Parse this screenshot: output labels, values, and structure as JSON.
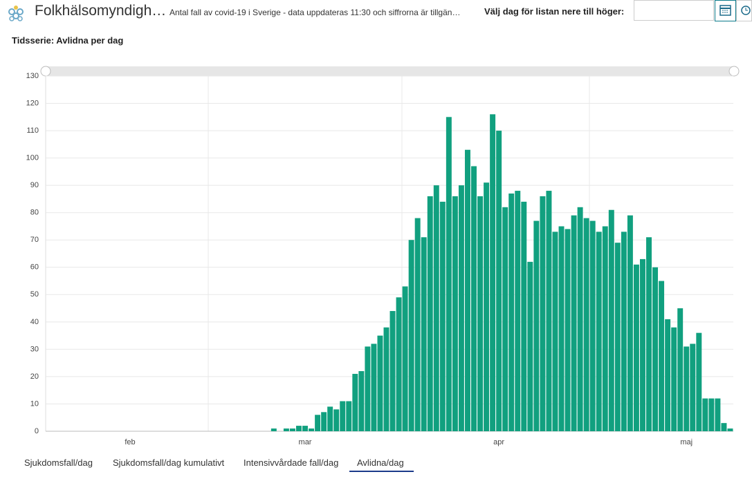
{
  "header": {
    "title": "Folkhälsomyndigh…",
    "subtitle": "Antal fall av covid-19 i Sverige - data uppdateras 11:30 och siffrorna är tillgän…",
    "date_label": "Välj dag för listan nere till höger:"
  },
  "chart_data": {
    "type": "bar",
    "title": "Tidsserie: Avlidna per dag",
    "categories": [
      null,
      null,
      null,
      null,
      null,
      null,
      null,
      null,
      null,
      null,
      null,
      null,
      null,
      "feb",
      null,
      null,
      null,
      null,
      null,
      null,
      null,
      null,
      null,
      null,
      null,
      null,
      null,
      null,
      null,
      null,
      null,
      null,
      null,
      null,
      null,
      null,
      null,
      null,
      null,
      null,
      null,
      "mar",
      null,
      null,
      null,
      null,
      null,
      null,
      null,
      null,
      null,
      null,
      null,
      null,
      null,
      null,
      null,
      null,
      null,
      null,
      null,
      null,
      null,
      null,
      null,
      null,
      null,
      null,
      null,
      null,
      null,
      null,
      "apr",
      null,
      null,
      null,
      null,
      null,
      null,
      null,
      null,
      null,
      null,
      null,
      null,
      null,
      null,
      null,
      null,
      null,
      null,
      null,
      null,
      null,
      null,
      null,
      null,
      null,
      null,
      null,
      null,
      null,
      "maj",
      null,
      null,
      null,
      null,
      null,
      null,
      null
    ],
    "values": [
      0,
      0,
      0,
      0,
      0,
      0,
      0,
      0,
      0,
      0,
      0,
      0,
      0,
      0,
      0,
      0,
      0,
      0,
      0,
      0,
      0,
      0,
      0,
      0,
      0,
      0,
      0,
      0,
      0,
      0,
      0,
      0,
      0,
      0,
      0,
      0,
      1,
      0,
      1,
      1,
      2,
      2,
      1,
      6,
      7,
      9,
      8,
      11,
      11,
      21,
      22,
      31,
      32,
      35,
      38,
      44,
      49,
      53,
      70,
      78,
      71,
      86,
      90,
      84,
      115,
      86,
      90,
      103,
      97,
      86,
      91,
      116,
      110,
      82,
      87,
      88,
      84,
      62,
      77,
      86,
      88,
      73,
      75,
      74,
      79,
      82,
      78,
      77,
      73,
      75,
      81,
      69,
      73,
      79,
      61,
      63,
      71,
      60,
      55,
      41,
      38,
      45,
      31,
      32,
      36,
      12,
      12,
      12,
      3,
      1
    ],
    "color": "#11a07f",
    "ylim": [
      0,
      130
    ],
    "yticks": [
      0,
      10,
      20,
      30,
      40,
      50,
      60,
      70,
      80,
      90,
      100,
      110,
      120,
      130
    ],
    "grid": true
  },
  "tabs": [
    "Sjukdomsfall/dag",
    "Sjukdomsfall/dag kumulativt",
    "Intensivvårdade fall/dag",
    "Avlidna/dag"
  ]
}
